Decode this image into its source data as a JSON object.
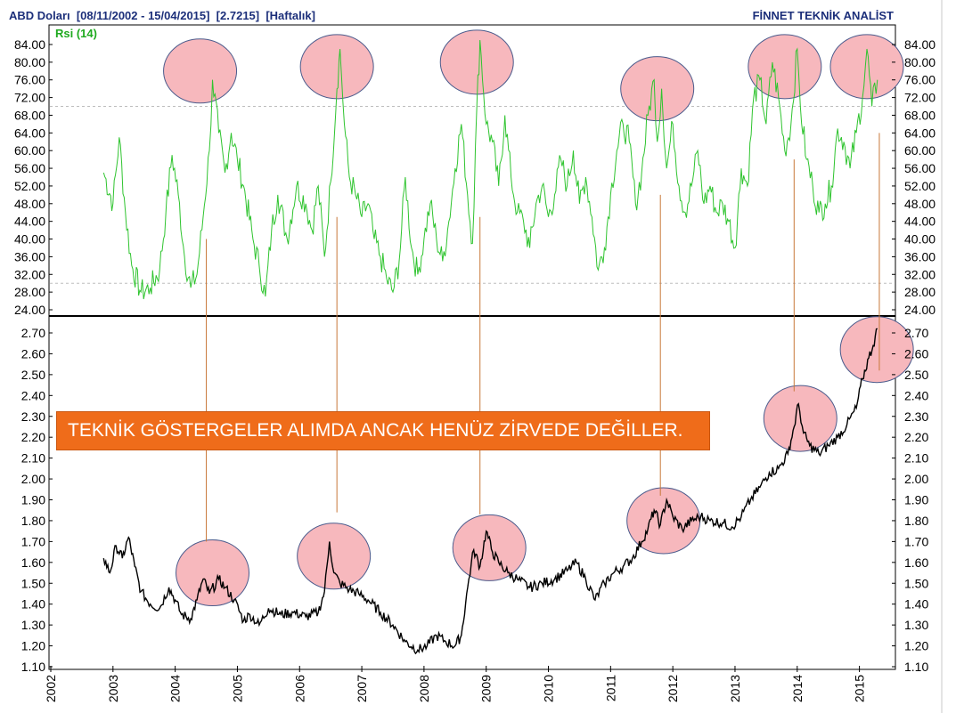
{
  "header": {
    "left": "ABD Doları  [08/11/2002 - 15/04/2015]  [2.7215]  [Haftalık]",
    "right": "FİNNET TEKNİK ANALİST"
  },
  "banner": "TEKNİK GÖSTERGELER ALIMDA ANCAK HENÜZ ZİRVEDE DEĞİLLER.",
  "colors": {
    "rsi_line": "#2fc42f",
    "price_line": "#000000",
    "circle_fill": "#f7b8bd",
    "circle_stroke": "#4b5b8c",
    "connector": "#c8783a",
    "banner_bg": "#ef6c1a",
    "header_text": "#1c2f7a"
  },
  "chart_data": [
    {
      "type": "line",
      "title": "Rsi (14)",
      "ylim": [
        24,
        86
      ],
      "yticks": [
        "84.00",
        "80.00",
        "76.00",
        "72.00",
        "68.00",
        "64.00",
        "60.00",
        "56.00",
        "52.00",
        "48.00",
        "44.00",
        "40.00",
        "36.00",
        "32.00",
        "28.00",
        "24.00"
      ],
      "reference_lines": [
        70,
        30
      ],
      "series": [
        {
          "name": "Rsi (14)",
          "points": [
            [
              2002.85,
              55
            ],
            [
              2003.0,
              48
            ],
            [
              2003.1,
              63
            ],
            [
              2003.2,
              46
            ],
            [
              2003.3,
              34
            ],
            [
              2003.45,
              28
            ],
            [
              2003.6,
              29
            ],
            [
              2003.75,
              33
            ],
            [
              2003.85,
              46
            ],
            [
              2003.95,
              59
            ],
            [
              2004.05,
              50
            ],
            [
              2004.15,
              36
            ],
            [
              2004.25,
              29
            ],
            [
              2004.35,
              32
            ],
            [
              2004.45,
              45
            ],
            [
              2004.55,
              60
            ],
            [
              2004.6,
              76
            ],
            [
              2004.7,
              64
            ],
            [
              2004.8,
              55
            ],
            [
              2004.9,
              64
            ],
            [
              2005.0,
              58
            ],
            [
              2005.1,
              52
            ],
            [
              2005.25,
              40
            ],
            [
              2005.35,
              34
            ],
            [
              2005.45,
              27
            ],
            [
              2005.55,
              42
            ],
            [
              2005.65,
              50
            ],
            [
              2005.8,
              40
            ],
            [
              2005.95,
              52
            ],
            [
              2006.1,
              48
            ],
            [
              2006.2,
              42
            ],
            [
              2006.3,
              52
            ],
            [
              2006.4,
              36
            ],
            [
              2006.5,
              53
            ],
            [
              2006.6,
              74
            ],
            [
              2006.65,
              83
            ],
            [
              2006.72,
              66
            ],
            [
              2006.8,
              54
            ],
            [
              2006.9,
              50
            ],
            [
              2007.0,
              45
            ],
            [
              2007.1,
              48
            ],
            [
              2007.2,
              40
            ],
            [
              2007.3,
              36
            ],
            [
              2007.4,
              31
            ],
            [
              2007.5,
              28
            ],
            [
              2007.6,
              35
            ],
            [
              2007.7,
              54
            ],
            [
              2007.8,
              38
            ],
            [
              2007.9,
              32
            ],
            [
              2008.0,
              40
            ],
            [
              2008.1,
              48
            ],
            [
              2008.2,
              40
            ],
            [
              2008.3,
              35
            ],
            [
              2008.4,
              44
            ],
            [
              2008.5,
              56
            ],
            [
              2008.6,
              66
            ],
            [
              2008.7,
              50
            ],
            [
              2008.78,
              39
            ],
            [
              2008.85,
              70
            ],
            [
              2008.9,
              85
            ],
            [
              2009.0,
              66
            ],
            [
              2009.1,
              62
            ],
            [
              2009.2,
              52
            ],
            [
              2009.3,
              68
            ],
            [
              2009.4,
              54
            ],
            [
              2009.5,
              46
            ],
            [
              2009.6,
              44
            ],
            [
              2009.7,
              38
            ],
            [
              2009.8,
              48
            ],
            [
              2009.9,
              52
            ],
            [
              2010.0,
              45
            ],
            [
              2010.1,
              50
            ],
            [
              2010.2,
              58
            ],
            [
              2010.3,
              52
            ],
            [
              2010.4,
              60
            ],
            [
              2010.5,
              48
            ],
            [
              2010.6,
              54
            ],
            [
              2010.7,
              45
            ],
            [
              2010.8,
              33
            ],
            [
              2010.9,
              38
            ],
            [
              2011.0,
              50
            ],
            [
              2011.1,
              60
            ],
            [
              2011.2,
              66
            ],
            [
              2011.3,
              62
            ],
            [
              2011.4,
              48
            ],
            [
              2011.5,
              55
            ],
            [
              2011.6,
              68
            ],
            [
              2011.7,
              76
            ],
            [
              2011.75,
              62
            ],
            [
              2011.82,
              74
            ],
            [
              2011.9,
              56
            ],
            [
              2012.0,
              66
            ],
            [
              2012.1,
              52
            ],
            [
              2012.2,
              46
            ],
            [
              2012.3,
              52
            ],
            [
              2012.4,
              60
            ],
            [
              2012.5,
              48
            ],
            [
              2012.6,
              52
            ],
            [
              2012.7,
              46
            ],
            [
              2012.8,
              48
            ],
            [
              2012.9,
              44
            ],
            [
              2013.0,
              38
            ],
            [
              2013.1,
              56
            ],
            [
              2013.2,
              52
            ],
            [
              2013.3,
              72
            ],
            [
              2013.4,
              76
            ],
            [
              2013.5,
              66
            ],
            [
              2013.6,
              80
            ],
            [
              2013.7,
              72
            ],
            [
              2013.8,
              60
            ],
            [
              2013.9,
              66
            ],
            [
              2014.0,
              83
            ],
            [
              2014.05,
              70
            ],
            [
              2014.15,
              58
            ],
            [
              2014.25,
              52
            ],
            [
              2014.35,
              46
            ],
            [
              2014.45,
              48
            ],
            [
              2014.55,
              52
            ],
            [
              2014.65,
              65
            ],
            [
              2014.75,
              62
            ],
            [
              2014.85,
              56
            ],
            [
              2014.95,
              64
            ],
            [
              2015.05,
              72
            ],
            [
              2015.12,
              83
            ],
            [
              2015.2,
              70
            ],
            [
              2015.29,
              76
            ]
          ]
        }
      ]
    },
    {
      "type": "line",
      "title": "ABD Doları",
      "ylim": [
        1.1,
        2.75
      ],
      "yticks": [
        "2.70",
        "2.60",
        "2.50",
        "2.40",
        "2.30",
        "2.20",
        "2.10",
        "2.00",
        "1.90",
        "1.80",
        "1.70",
        "1.60",
        "1.50",
        "1.40",
        "1.30",
        "1.20",
        "1.10"
      ],
      "xlabel_ticks": [
        "2002",
        "2003",
        "2004",
        "2005",
        "2006",
        "2007",
        "2008",
        "2009",
        "2010",
        "2011",
        "2012",
        "2013",
        "2014",
        "2015"
      ],
      "series": [
        {
          "name": "ABD Doları",
          "points": [
            [
              2002.85,
              1.62
            ],
            [
              2002.95,
              1.55
            ],
            [
              2003.05,
              1.68
            ],
            [
              2003.15,
              1.62
            ],
            [
              2003.25,
              1.72
            ],
            [
              2003.35,
              1.58
            ],
            [
              2003.45,
              1.46
            ],
            [
              2003.6,
              1.4
            ],
            [
              2003.75,
              1.38
            ],
            [
              2003.9,
              1.48
            ],
            [
              2004.0,
              1.42
            ],
            [
              2004.1,
              1.35
            ],
            [
              2004.25,
              1.33
            ],
            [
              2004.35,
              1.42
            ],
            [
              2004.45,
              1.52
            ],
            [
              2004.55,
              1.45
            ],
            [
              2004.7,
              1.52
            ],
            [
              2004.8,
              1.48
            ],
            [
              2004.95,
              1.42
            ],
            [
              2005.1,
              1.32
            ],
            [
              2005.2,
              1.35
            ],
            [
              2005.35,
              1.3
            ],
            [
              2005.5,
              1.38
            ],
            [
              2005.7,
              1.35
            ],
            [
              2005.9,
              1.36
            ],
            [
              2006.1,
              1.34
            ],
            [
              2006.3,
              1.36
            ],
            [
              2006.4,
              1.46
            ],
            [
              2006.48,
              1.7
            ],
            [
              2006.55,
              1.55
            ],
            [
              2006.65,
              1.5
            ],
            [
              2006.8,
              1.47
            ],
            [
              2006.95,
              1.45
            ],
            [
              2007.1,
              1.42
            ],
            [
              2007.3,
              1.36
            ],
            [
              2007.5,
              1.3
            ],
            [
              2007.7,
              1.22
            ],
            [
              2007.9,
              1.18
            ],
            [
              2008.05,
              1.2
            ],
            [
              2008.2,
              1.25
            ],
            [
              2008.35,
              1.22
            ],
            [
              2008.5,
              1.2
            ],
            [
              2008.6,
              1.25
            ],
            [
              2008.72,
              1.52
            ],
            [
              2008.8,
              1.66
            ],
            [
              2008.9,
              1.58
            ],
            [
              2009.0,
              1.75
            ],
            [
              2009.1,
              1.65
            ],
            [
              2009.2,
              1.6
            ],
            [
              2009.35,
              1.55
            ],
            [
              2009.5,
              1.52
            ],
            [
              2009.7,
              1.48
            ],
            [
              2009.9,
              1.5
            ],
            [
              2010.1,
              1.52
            ],
            [
              2010.3,
              1.56
            ],
            [
              2010.45,
              1.6
            ],
            [
              2010.6,
              1.52
            ],
            [
              2010.75,
              1.42
            ],
            [
              2010.9,
              1.5
            ],
            [
              2011.05,
              1.55
            ],
            [
              2011.2,
              1.58
            ],
            [
              2011.35,
              1.62
            ],
            [
              2011.5,
              1.7
            ],
            [
              2011.6,
              1.76
            ],
            [
              2011.7,
              1.85
            ],
            [
              2011.8,
              1.78
            ],
            [
              2011.9,
              1.9
            ],
            [
              2012.0,
              1.82
            ],
            [
              2012.15,
              1.76
            ],
            [
              2012.3,
              1.8
            ],
            [
              2012.45,
              1.82
            ],
            [
              2012.6,
              1.8
            ],
            [
              2012.8,
              1.79
            ],
            [
              2012.95,
              1.77
            ],
            [
              2013.1,
              1.82
            ],
            [
              2013.25,
              1.9
            ],
            [
              2013.4,
              1.96
            ],
            [
              2013.55,
              2.03
            ],
            [
              2013.7,
              2.05
            ],
            [
              2013.85,
              2.12
            ],
            [
              2013.95,
              2.25
            ],
            [
              2014.02,
              2.36
            ],
            [
              2014.1,
              2.22
            ],
            [
              2014.2,
              2.16
            ],
            [
              2014.35,
              2.12
            ],
            [
              2014.5,
              2.16
            ],
            [
              2014.65,
              2.2
            ],
            [
              2014.8,
              2.26
            ],
            [
              2014.95,
              2.34
            ],
            [
              2015.05,
              2.48
            ],
            [
              2015.15,
              2.58
            ],
            [
              2015.22,
              2.64
            ],
            [
              2015.29,
              2.72
            ]
          ]
        }
      ]
    }
  ]
}
